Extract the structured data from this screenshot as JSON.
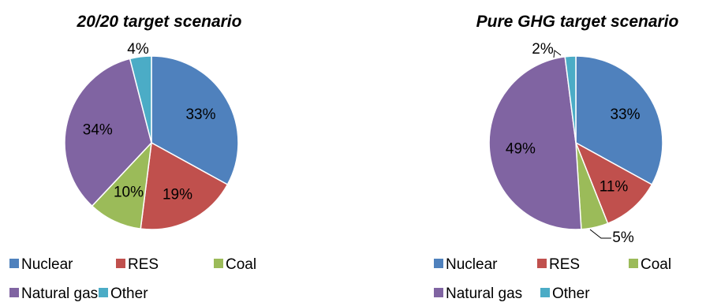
{
  "chart_data": [
    {
      "type": "pie",
      "title": "20/20 target scenario",
      "categories": [
        "Nuclear",
        "RES",
        "Coal",
        "Natural gas",
        "Other"
      ],
      "values": [
        33,
        19,
        10,
        34,
        4
      ],
      "labels": [
        "33%",
        "19%",
        "10%",
        "34%",
        "4%"
      ],
      "colors": [
        "#4F81BD",
        "#C0504D",
        "#9BBB59",
        "#8064A2",
        "#4BACC6"
      ],
      "legend": "bottom"
    },
    {
      "type": "pie",
      "title": "Pure GHG target scenario",
      "categories": [
        "Nuclear",
        "RES",
        "Coal",
        "Natural gas",
        "Other"
      ],
      "values": [
        33,
        11,
        5,
        49,
        2
      ],
      "labels": [
        "33%",
        "11%",
        "5%",
        "49%",
        "2%"
      ],
      "colors": [
        "#4F81BD",
        "#C0504D",
        "#9BBB59",
        "#8064A2",
        "#4BACC6"
      ],
      "legend": "bottom"
    }
  ]
}
